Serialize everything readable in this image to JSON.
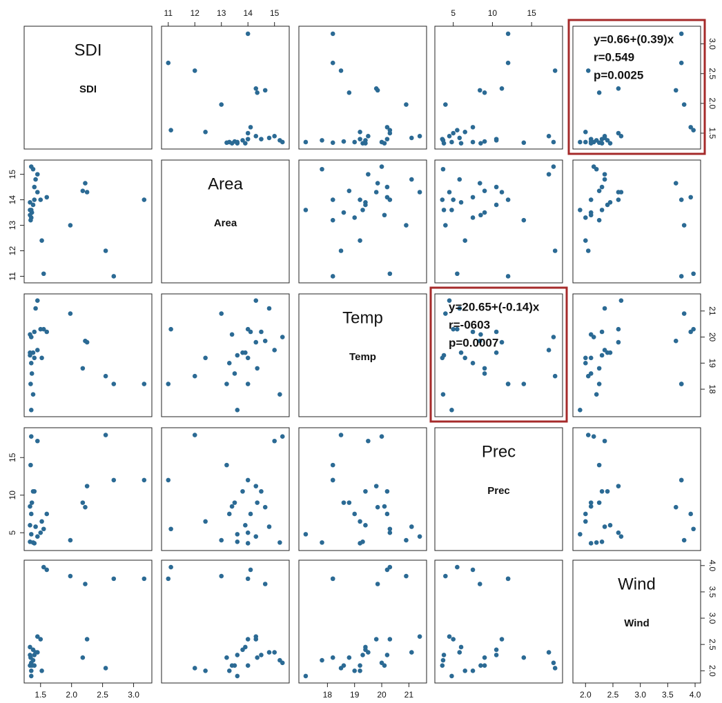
{
  "chart_data": {
    "type": "scatter_matrix",
    "color": "#2b6a94",
    "variables": [
      {
        "name": "SDI",
        "lim": [
          1.28,
          3.25
        ],
        "ticks": [
          {
            "value": 1.5,
            "label": "1.5"
          },
          {
            "value": 2,
            "label": "2.0"
          },
          {
            "value": 2.5,
            "label": "2.5"
          },
          {
            "value": 3,
            "label": "3.0"
          }
        ],
        "values": [
          3.17,
          2.68,
          2.55,
          2.25,
          2.22,
          2.18,
          1.98,
          1.6,
          1.55,
          1.52,
          1.5,
          1.45,
          1.45,
          1.42,
          1.4,
          1.4,
          1.38,
          1.38,
          1.36,
          1.35,
          1.35,
          1.35,
          1.34,
          1.33,
          1.33,
          1.33
        ]
      },
      {
        "name": "Area",
        "lim": [
          10.85,
          15.45
        ],
        "ticks": [
          11,
          12,
          13,
          14,
          15
        ],
        "values": [
          14.0,
          11.0,
          12.0,
          14.3,
          14.65,
          14.35,
          13.0,
          14.1,
          11.1,
          12.4,
          14.0,
          14.3,
          15.0,
          14.8,
          14.5,
          14.0,
          15.2,
          13.8,
          13.5,
          13.3,
          15.3,
          13.6,
          13.2,
          13.9,
          13.4,
          13.6
        ]
      },
      {
        "name": "Temp",
        "lim": [
          17.05,
          21.55
        ],
        "ticks": [
          18,
          19,
          20,
          21
        ],
        "values": [
          18.2,
          18.2,
          18.5,
          19.8,
          19.85,
          18.8,
          20.9,
          20.2,
          20.3,
          19.2,
          20.3,
          21.4,
          19.5,
          21.1,
          20.2,
          19.2,
          17.8,
          19.4,
          18.6,
          19.0,
          20.0,
          17.2,
          18.2,
          19.4,
          20.1,
          19.3
        ]
      },
      {
        "name": "Prec",
        "lim": [
          3.0,
          18.6
        ],
        "ticks": [
          5,
          10,
          15
        ],
        "values": [
          12,
          12,
          18,
          11.2,
          8.4,
          9.0,
          4.0,
          7.5,
          5.5,
          6.5,
          5.0,
          4.5,
          17.2,
          5.8,
          10.5,
          3.6,
          3.7,
          10.5,
          9.0,
          7.5,
          17.8,
          4.8,
          14.0,
          6.0,
          8.5,
          3.8
        ]
      },
      {
        "name": "Wind",
        "lim": [
          1.82,
          4.05
        ],
        "ticks": [
          {
            "value": 2,
            "label": "2.0"
          },
          {
            "value": 2.5,
            "label": "2.5"
          },
          {
            "value": 3,
            "label": "3.0"
          },
          {
            "value": 3.5,
            "label": "3.5"
          },
          {
            "value": 4,
            "label": "4.0"
          }
        ],
        "values": [
          3.75,
          3.75,
          2.05,
          2.6,
          3.65,
          2.25,
          3.8,
          3.92,
          3.97,
          2.0,
          2.6,
          2.65,
          2.35,
          2.35,
          2.3,
          2.1,
          2.2,
          2.4,
          2.1,
          2.0,
          2.15,
          1.9,
          2.25,
          2.45,
          2.1,
          2.3
        ]
      }
    ],
    "annotations": [
      {
        "row": 0,
        "col": 4,
        "lines": [
          "y=0.66+(0.39)x",
          "r=0.549",
          "p=0.0025"
        ]
      },
      {
        "row": 2,
        "col": 3,
        "lines": [
          "y=20.65+(-0.14)x",
          "r=-0603",
          "p=0.0007"
        ]
      }
    ]
  }
}
